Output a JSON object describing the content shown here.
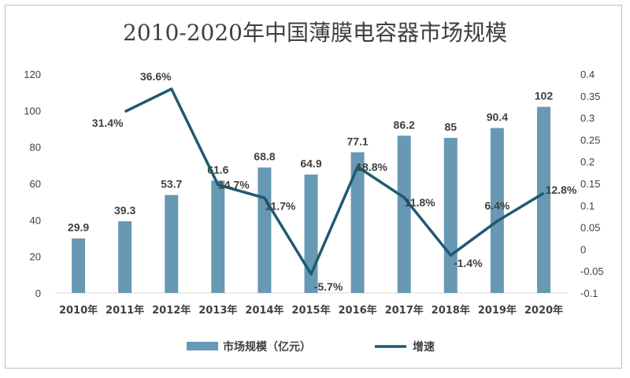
{
  "chart_data": {
    "type": "bar+line",
    "title": "2010-2020年中国薄膜电容器市场规模",
    "categories": [
      "2010年",
      "2011年",
      "2012年",
      "2013年",
      "2014年",
      "2015年",
      "2016年",
      "2017年",
      "2018年",
      "2019年",
      "2020年"
    ],
    "series": [
      {
        "name": "市场规模（亿元）",
        "type": "bar",
        "axis": "left",
        "values": [
          29.9,
          39.3,
          53.7,
          61.6,
          68.8,
          64.9,
          77.1,
          86.2,
          85,
          90.4,
          102
        ],
        "labels": [
          "29.9",
          "39.3",
          "53.7",
          "61.6",
          "68.8",
          "64.9",
          "77.1",
          "86.2",
          "85",
          "90.4",
          "102"
        ],
        "color": "#6798b4"
      },
      {
        "name": "增速",
        "type": "line",
        "axis": "right",
        "values": [
          null,
          0.314,
          0.366,
          0.147,
          0.117,
          -0.057,
          0.188,
          0.118,
          -0.014,
          0.064,
          0.128
        ],
        "labels": [
          null,
          "31.4%",
          "36.6%",
          "14.7%",
          "11.7%",
          "-5.7%",
          "18.8%",
          "11.8%",
          "-1.4%",
          "6.4%",
          "12.8%"
        ],
        "color": "#1f5a72"
      }
    ],
    "left_axis": {
      "min": 0,
      "max": 120,
      "ticks": [
        "0",
        "20",
        "40",
        "60",
        "80",
        "100",
        "120"
      ]
    },
    "right_axis": {
      "min": -0.1,
      "max": 0.4,
      "ticks": [
        "-0.1",
        "-0.05",
        "0",
        "0.05",
        "0.1",
        "0.15",
        "0.2",
        "0.25",
        "0.3",
        "0.35",
        "0.4"
      ]
    },
    "legend": {
      "position": "bottom",
      "items": [
        "市场规模（亿元）",
        "增速"
      ]
    },
    "grid": false
  }
}
